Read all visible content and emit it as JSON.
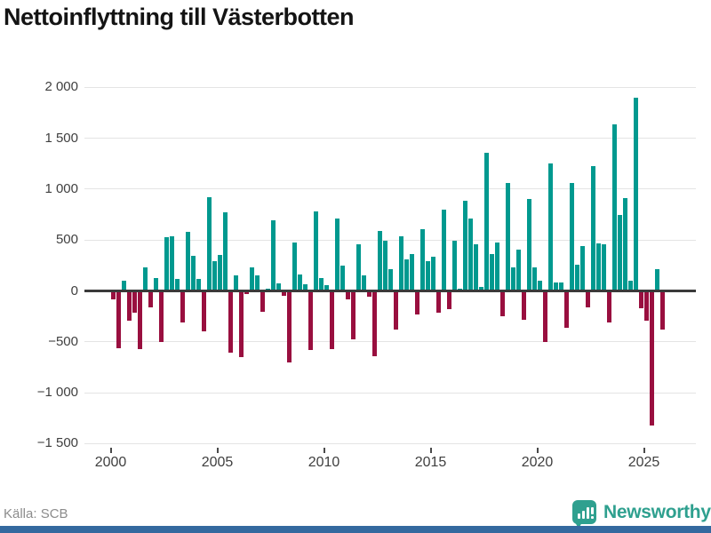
{
  "title": "Nettoinflyttning till Västerbotten",
  "source": "Källa: SCB",
  "logo": {
    "text": "Newsworthy",
    "color": "#2fa08f",
    "icon": "speech-bubble-bar-chart"
  },
  "colors": {
    "positive": "#00998f",
    "negative": "#990f3f",
    "grid": "#e4e4e4",
    "zero_axis": "#3a3a3a",
    "bottom_bar": "#34699f"
  },
  "chart_data": {
    "type": "bar",
    "title": "Nettoinflyttning till Västerbotten",
    "xlabel": "",
    "ylabel": "",
    "frequency": "quarterly",
    "start_period": "2000Q1",
    "end_period": "2025Q4",
    "ylim": [
      -1500,
      2000
    ],
    "grid": true,
    "legend": false,
    "y_ticks": [
      {
        "label": "2 000",
        "value": 2000
      },
      {
        "label": "1 500",
        "value": 1500
      },
      {
        "label": "1 000",
        "value": 1000
      },
      {
        "label": "500",
        "value": 500
      },
      {
        "label": "0",
        "value": 0
      },
      {
        "label": "−500",
        "value": -500
      },
      {
        "label": "−1 000",
        "value": -1000
      },
      {
        "label": "−1 500",
        "value": -1500
      }
    ],
    "x_ticks": [
      {
        "label": "2000",
        "year": 2000
      },
      {
        "label": "2005",
        "year": 2005
      },
      {
        "label": "2010",
        "year": 2010
      },
      {
        "label": "2015",
        "year": 2015
      },
      {
        "label": "2020",
        "year": 2020
      },
      {
        "label": "2025",
        "year": 2025
      }
    ],
    "values": [
      -75,
      -550,
      100,
      -285,
      -205,
      -565,
      230,
      -155,
      120,
      -490,
      520,
      535,
      115,
      -305,
      575,
      340,
      110,
      -385,
      920,
      290,
      350,
      765,
      -595,
      150,
      -640,
      -20,
      225,
      150,
      -195,
      20,
      685,
      70,
      -35,
      -690,
      475,
      160,
      65,
      -570,
      775,
      125,
      55,
      -560,
      705,
      245,
      -75,
      -465,
      450,
      145,
      -45,
      -630,
      585,
      485,
      210,
      -375,
      530,
      305,
      360,
      -220,
      600,
      290,
      330,
      -205,
      790,
      -170,
      485,
      15,
      885,
      710,
      455,
      35,
      1350,
      355,
      470,
      -240,
      1060,
      230,
      400,
      -275,
      895,
      230,
      100,
      -490,
      1250,
      75,
      80,
      -355,
      1060,
      250,
      435,
      -150,
      1220,
      460,
      455,
      -300,
      1630,
      745,
      905,
      95,
      1890,
      -160,
      -280,
      -1310,
      210,
      -375
    ]
  }
}
